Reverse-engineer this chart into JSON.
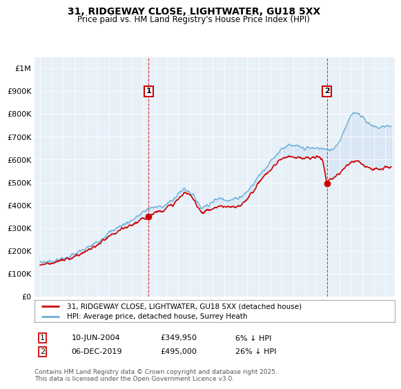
{
  "title": "31, RIDGEWAY CLOSE, LIGHTWATER, GU18 5XX",
  "subtitle": "Price paid vs. HM Land Registry's House Price Index (HPI)",
  "legend_line1": "31, RIDGEWAY CLOSE, LIGHTWATER, GU18 5XX (detached house)",
  "legend_line2": "HPI: Average price, detached house, Surrey Heath",
  "annotation1_num": "1",
  "annotation1_date": "10-JUN-2004",
  "annotation1_price": "£349,950",
  "annotation1_hpi": "6% ↓ HPI",
  "annotation2_num": "2",
  "annotation2_date": "06-DEC-2019",
  "annotation2_price": "£495,000",
  "annotation2_hpi": "26% ↓ HPI",
  "footnote": "Contains HM Land Registry data © Crown copyright and database right 2025.\nThis data is licensed under the Open Government Licence v3.0.",
  "hpi_color": "#6baed6",
  "hpi_fill_color": "#c6dbef",
  "price_color": "#cc0000",
  "annotation_color": "#cc0000",
  "background_color": "#ffffff",
  "chart_bg_color": "#e8f0f8",
  "grid_color": "#ffffff",
  "ylim": [
    0,
    1050000
  ],
  "yticks": [
    0,
    100000,
    200000,
    300000,
    400000,
    500000,
    600000,
    700000,
    800000,
    900000,
    1000000
  ],
  "ytick_labels": [
    "£0",
    "£100K",
    "£200K",
    "£300K",
    "£400K",
    "£500K",
    "£600K",
    "£700K",
    "£800K",
    "£900K",
    "£1M"
  ],
  "sale1_x": 2004.44,
  "sale1_y": 349950,
  "sale2_x": 2019.92,
  "sale2_y": 495000,
  "vline1_x": 2004.44,
  "vline2_x": 2019.92,
  "xmin": 1994.5,
  "xmax": 2025.8
}
